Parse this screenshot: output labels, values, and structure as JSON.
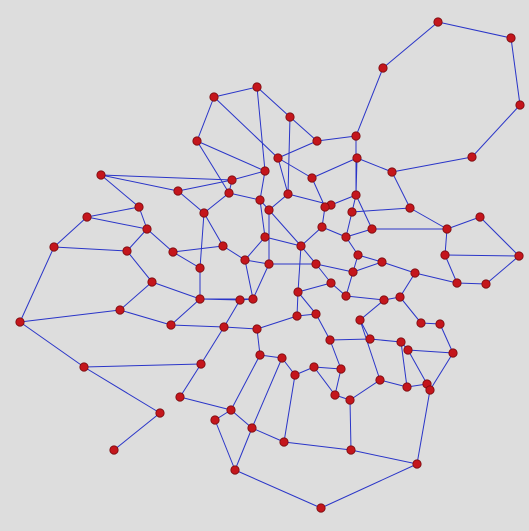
{
  "diagram": {
    "kind": "network-graph",
    "colors": {
      "background": "#dddddd",
      "edge": "#2a35c8",
      "node_fill": "#c4161c",
      "node_stroke": "#7a0a0e"
    },
    "node_count": 103,
    "edge_count": 160
  }
}
